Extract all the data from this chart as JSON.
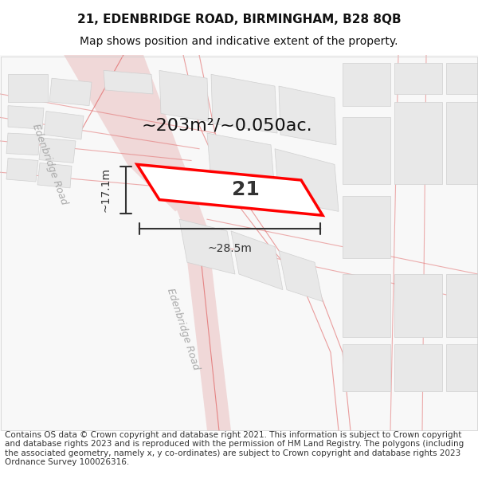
{
  "title_line1": "21, EDENBRIDGE ROAD, BIRMINGHAM, B28 8QB",
  "title_line2": "Map shows position and indicative extent of the property.",
  "footer_text": "Contains OS data © Crown copyright and database right 2021. This information is subject to Crown copyright and database rights 2023 and is reproduced with the permission of HM Land Registry. The polygons (including the associated geometry, namely x, y co-ordinates) are subject to Crown copyright and database rights 2023 Ordnance Survey 100026316.",
  "bg_color": "#ffffff",
  "map_bg_color": "#f5f5f5",
  "road_color": "#e8c8c8",
  "road_line_color": "#e06060",
  "building_fill": "#e0e0e0",
  "building_stroke": "#cccccc",
  "highlight_color": "#ff0000",
  "text_color": "#333333",
  "label_color": "#aaaaaa",
  "area_label": "~203m²/~0.050ac.",
  "property_number": "21",
  "width_label": "~28.5m",
  "height_label": "~17.1m",
  "road_label_1": "Edenbridge Road",
  "road_label_2": "Edenbridge Road",
  "map_xlim": [
    0,
    600
  ],
  "map_ylim": [
    0,
    480
  ],
  "title_fontsize": 11,
  "subtitle_fontsize": 10,
  "footer_fontsize": 7.5
}
